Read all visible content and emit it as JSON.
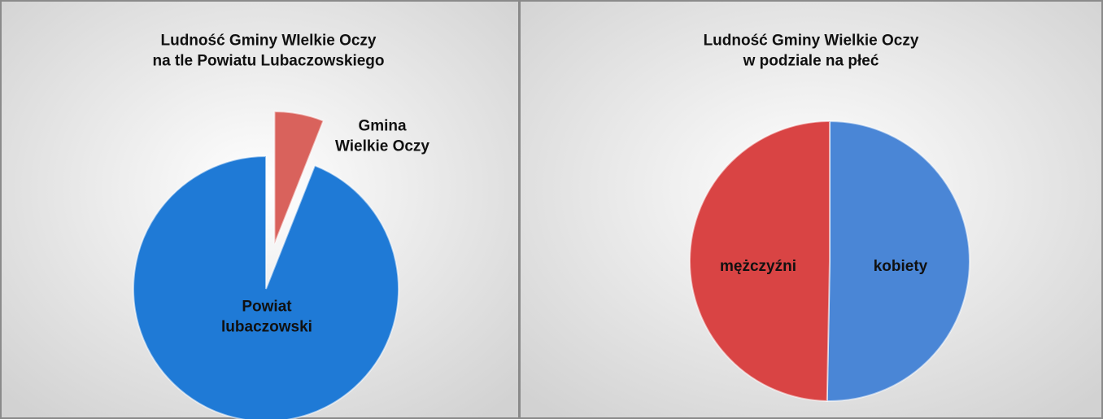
{
  "chart_data": [
    {
      "type": "pie",
      "title": "Ludność Gminy WIelkie Oczy\nna tle Powiatu Lubaczowskiego",
      "categories": [
        "Gmina\nWielkie Oczy",
        "Powiat\nlubaczowski"
      ],
      "values": [
        6,
        94
      ],
      "colors": [
        "#d9625c",
        "#1f7ad6"
      ],
      "exploded": [
        true,
        false
      ]
    },
    {
      "type": "pie",
      "title": "Ludność Gminy Wielkie Oczy\nw podziale na płeć",
      "categories": [
        "kobiety",
        "mężczyźni"
      ],
      "values": [
        50.3,
        49.7
      ],
      "colors": [
        "#4a86d6",
        "#d94444"
      ],
      "exploded": [
        false,
        false
      ]
    }
  ]
}
